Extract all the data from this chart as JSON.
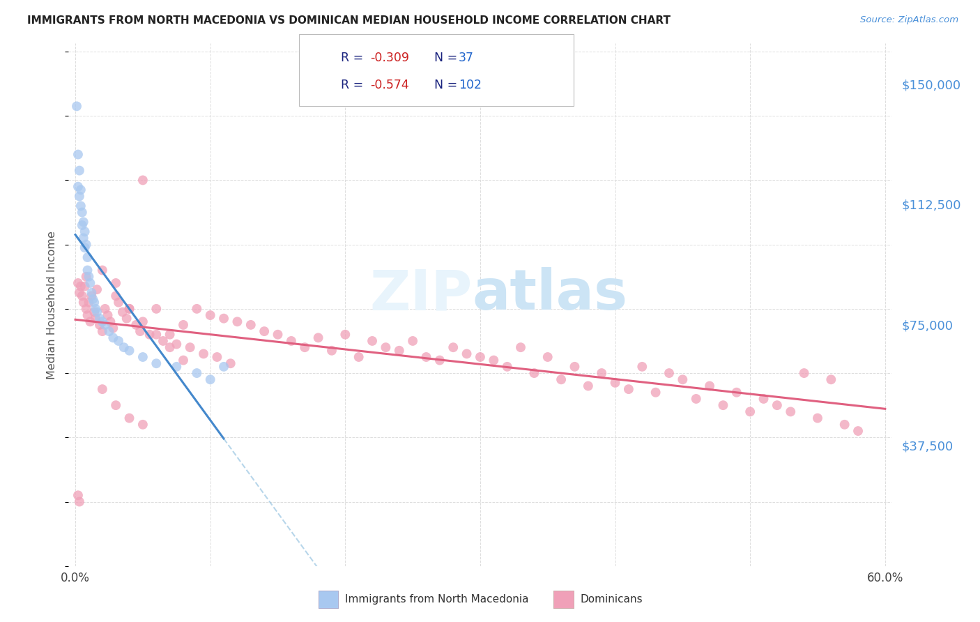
{
  "title": "IMMIGRANTS FROM NORTH MACEDONIA VS DOMINICAN MEDIAN HOUSEHOLD INCOME CORRELATION CHART",
  "source": "Source: ZipAtlas.com",
  "ylabel": "Median Household Income",
  "xlim": [
    -0.005,
    0.605
  ],
  "ylim": [
    0,
    162500
  ],
  "yticks": [
    37500,
    75000,
    112500,
    150000
  ],
  "ytick_labels": [
    "$37,500",
    "$75,000",
    "$112,500",
    "$150,000"
  ],
  "xtick_positions": [
    0.0,
    0.1,
    0.2,
    0.3,
    0.4,
    0.5,
    0.6
  ],
  "xtick_labels": [
    "0.0%",
    "",
    "",
    "",
    "",
    "",
    "60.0%"
  ],
  "r_mac": -0.309,
  "n_mac": 37,
  "r_dom": -0.574,
  "n_dom": 102,
  "color_mac": "#a8c8f0",
  "color_dom": "#f0a0b8",
  "color_mac_line": "#4488cc",
  "color_dom_line": "#e06080",
  "color_mac_dash": "#88bbdd",
  "title_color": "#222222",
  "axis_label_color": "#555555",
  "tick_label_color": "#4a90d9",
  "background_color": "#ffffff",
  "grid_color": "#dddddd",
  "watermark_color": "#cce4f5",
  "legend_dark_color": "#1a237e",
  "legend_r_val_color": "#cc2222",
  "legend_n_val_color": "#2266cc",
  "mac_x": [
    0.001,
    0.002,
    0.002,
    0.003,
    0.003,
    0.004,
    0.004,
    0.005,
    0.005,
    0.006,
    0.006,
    0.007,
    0.007,
    0.008,
    0.009,
    0.009,
    0.01,
    0.011,
    0.012,
    0.013,
    0.014,
    0.015,
    0.016,
    0.018,
    0.02,
    0.022,
    0.025,
    0.028,
    0.032,
    0.036,
    0.04,
    0.05,
    0.06,
    0.075,
    0.09,
    0.1,
    0.11
  ],
  "mac_y": [
    143000,
    128000,
    118000,
    123000,
    115000,
    117000,
    112000,
    110000,
    106000,
    107000,
    102000,
    104000,
    99000,
    100000,
    96000,
    92000,
    90000,
    88000,
    85000,
    83000,
    82000,
    80000,
    79000,
    77000,
    76000,
    75000,
    73000,
    71000,
    70000,
    68000,
    67000,
    65000,
    63000,
    62000,
    60000,
    58000,
    62000
  ],
  "dom_x": [
    0.002,
    0.003,
    0.004,
    0.005,
    0.006,
    0.007,
    0.008,
    0.009,
    0.01,
    0.011,
    0.012,
    0.014,
    0.015,
    0.016,
    0.018,
    0.02,
    0.022,
    0.024,
    0.026,
    0.028,
    0.03,
    0.032,
    0.035,
    0.038,
    0.04,
    0.045,
    0.048,
    0.05,
    0.055,
    0.06,
    0.065,
    0.07,
    0.075,
    0.08,
    0.085,
    0.09,
    0.095,
    0.1,
    0.105,
    0.11,
    0.115,
    0.12,
    0.13,
    0.14,
    0.15,
    0.16,
    0.17,
    0.18,
    0.19,
    0.2,
    0.21,
    0.22,
    0.23,
    0.24,
    0.25,
    0.26,
    0.27,
    0.28,
    0.29,
    0.3,
    0.31,
    0.32,
    0.33,
    0.34,
    0.35,
    0.36,
    0.37,
    0.38,
    0.39,
    0.4,
    0.41,
    0.42,
    0.43,
    0.44,
    0.45,
    0.46,
    0.47,
    0.48,
    0.49,
    0.5,
    0.51,
    0.52,
    0.53,
    0.54,
    0.55,
    0.56,
    0.57,
    0.58,
    0.008,
    0.02,
    0.03,
    0.04,
    0.05,
    0.06,
    0.07,
    0.08,
    0.02,
    0.03,
    0.04,
    0.05,
    0.002,
    0.003
  ],
  "dom_y": [
    88000,
    85000,
    87000,
    84000,
    82000,
    87000,
    80000,
    78000,
    82000,
    76000,
    84000,
    79000,
    77000,
    86000,
    75000,
    73000,
    80000,
    78000,
    76000,
    74000,
    88000,
    82000,
    79000,
    77000,
    80000,
    75000,
    73000,
    120000,
    72000,
    80000,
    70000,
    72000,
    69000,
    75000,
    68000,
    80000,
    66000,
    78000,
    65000,
    77000,
    63000,
    76000,
    75000,
    73000,
    72000,
    70000,
    68000,
    71000,
    67000,
    72000,
    65000,
    70000,
    68000,
    67000,
    70000,
    65000,
    64000,
    68000,
    66000,
    65000,
    64000,
    62000,
    68000,
    60000,
    65000,
    58000,
    62000,
    56000,
    60000,
    57000,
    55000,
    62000,
    54000,
    60000,
    58000,
    52000,
    56000,
    50000,
    54000,
    48000,
    52000,
    50000,
    48000,
    60000,
    46000,
    58000,
    44000,
    42000,
    90000,
    92000,
    84000,
    80000,
    76000,
    72000,
    68000,
    64000,
    55000,
    50000,
    46000,
    44000,
    22000,
    20000
  ]
}
